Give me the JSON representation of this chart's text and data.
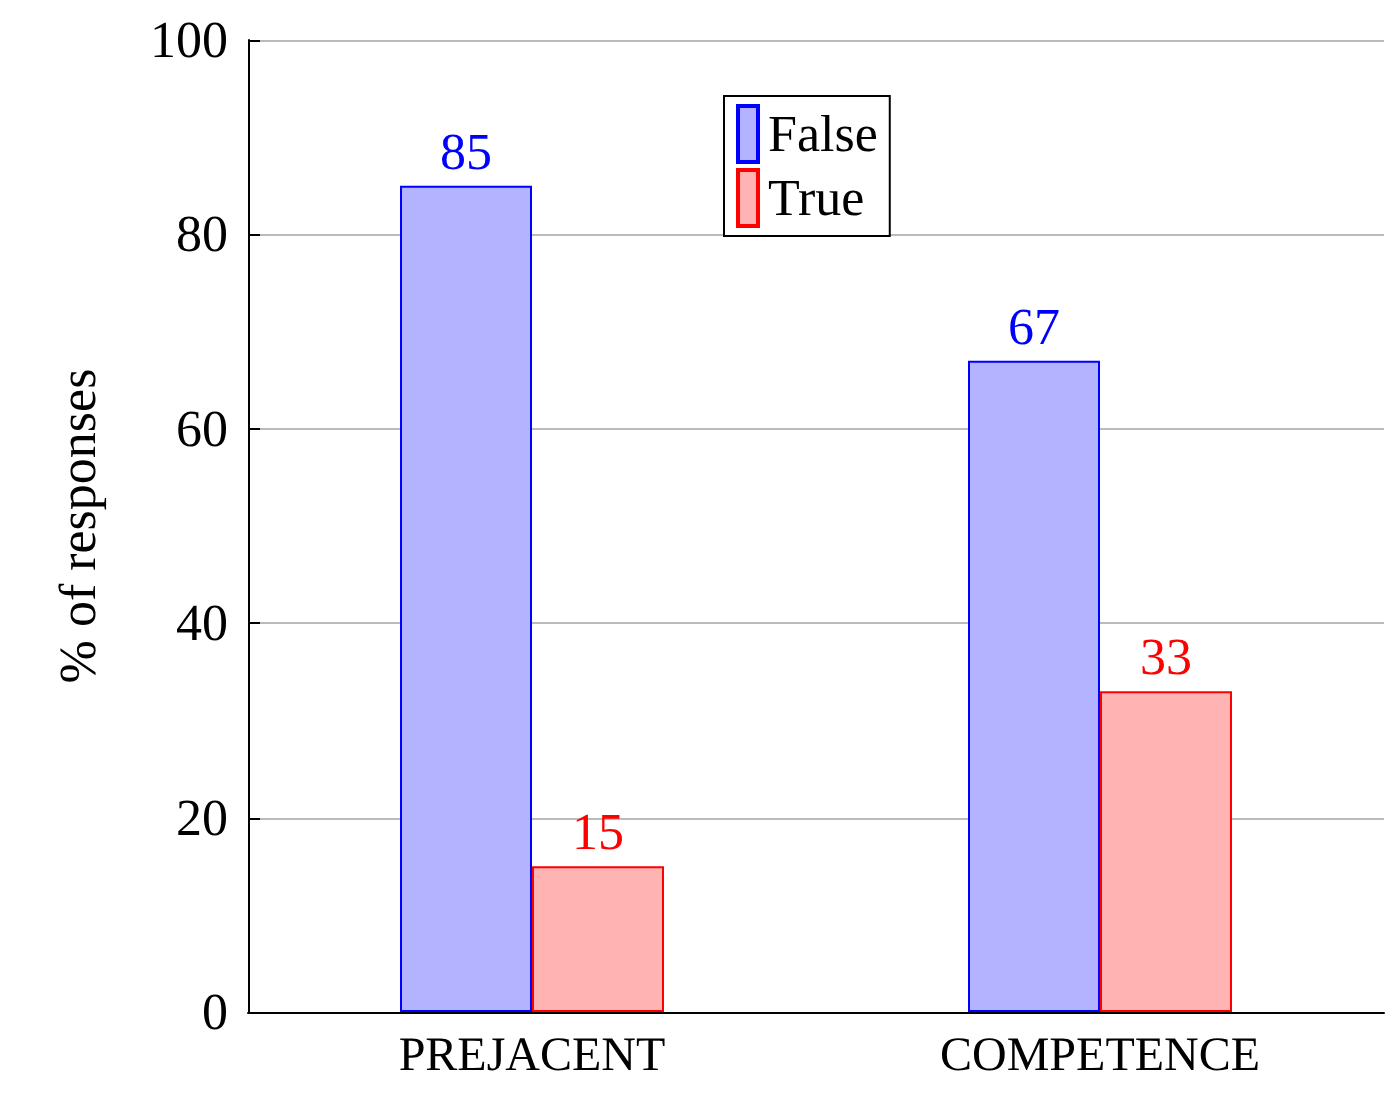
{
  "chart_data": {
    "type": "bar",
    "ylabel": "% of responses",
    "categories": [
      "PREJACENT",
      "COMPETENCE"
    ],
    "series": [
      {
        "name": "False",
        "color": "#b3b3ff",
        "values": [
          85,
          67
        ]
      },
      {
        "name": "True",
        "color": "#ffb3b3",
        "values": [
          15,
          33
        ]
      }
    ],
    "ylim": [
      0,
      100
    ],
    "yticks": [
      0,
      20,
      40,
      60,
      80,
      100
    ],
    "grid": "y",
    "legend": "top",
    "data_labels": true
  }
}
